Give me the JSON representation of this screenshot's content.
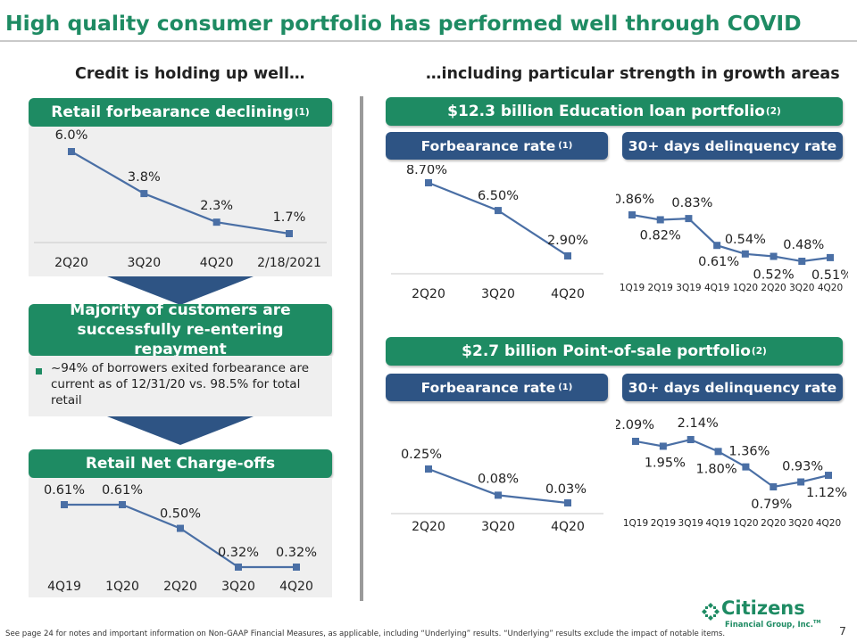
{
  "page": {
    "title": "High quality consumer portfolio has performed well through COVID",
    "left_subhead": "Credit is holding up well…",
    "right_subhead": "…including particular strength in growth areas",
    "page_number": "7",
    "footnote": "See page 24 for notes and important information on  Non-GAAP Financial Measures, as applicable, including “Underlying” results. “Underlying” results exclude the impact of notable items.",
    "brand_color": "#1e8b63",
    "secondary_color": "#2e5484",
    "series_color": "#4a6fa5"
  },
  "left": {
    "forbearance_header": "Retail forbearance declining",
    "forbearance_header_note": "(1)",
    "repayment_header": "Majority of customers are successfully re-entering repayment",
    "repayment_bullet": "~94% of borrowers exited forbearance are current as of 12/31/20 vs. 98.5% for total retail",
    "nco_header": "Retail Net Charge-offs"
  },
  "right": {
    "education_header": "$12.3 billion Education loan portfolio",
    "education_header_note": "(2)",
    "pos_header": "$2.7 billion Point-of-sale portfolio",
    "pos_header_note": "(2)",
    "forbearance_label": "Forbearance rate",
    "forbearance_label_note": "(1)",
    "delinquency_label": "30+ days delinquency rate"
  },
  "logo": {
    "name": "Citizens",
    "sub": "Financial Group, Inc.",
    "mark": "TM"
  },
  "chart_data": [
    {
      "id": "retail_forbearance",
      "type": "line",
      "categories": [
        "2Q20",
        "3Q20",
        "4Q20",
        "2/18/2021"
      ],
      "values": [
        6.0,
        3.8,
        2.3,
        1.7
      ],
      "labels": [
        "6.0%",
        "3.8%",
        "2.3%",
        "1.7%"
      ],
      "ylim": [
        0,
        7
      ]
    },
    {
      "id": "retail_nco",
      "type": "line",
      "categories": [
        "4Q19",
        "1Q20",
        "2Q20",
        "3Q20",
        "4Q20"
      ],
      "values": [
        0.61,
        0.61,
        0.5,
        0.32,
        0.32
      ],
      "labels": [
        "0.61%",
        "0.61%",
        "0.50%",
        "0.32%",
        "0.32%"
      ],
      "ylim": [
        0,
        1.5
      ]
    },
    {
      "id": "education_forbearance",
      "type": "line",
      "categories": [
        "2Q20",
        "3Q20",
        "4Q20"
      ],
      "values": [
        8.7,
        6.5,
        2.9
      ],
      "labels": [
        "8.70%",
        "6.50%",
        "2.90%"
      ],
      "ylim": [
        0,
        10
      ]
    },
    {
      "id": "education_delinquency",
      "type": "line",
      "categories": [
        "1Q19",
        "2Q19",
        "3Q19",
        "4Q19",
        "1Q20",
        "2Q20",
        "3Q20",
        "4Q20"
      ],
      "values": [
        0.86,
        0.82,
        0.83,
        0.61,
        0.54,
        0.52,
        0.48,
        0.51
      ],
      "labels": [
        "0.86%",
        "0.82%",
        "0.83%",
        "0.61%",
        "0.54%",
        "0.52%",
        "0.48%",
        "0.51%"
      ],
      "ylim": [
        0,
        2
      ]
    },
    {
      "id": "pos_forbearance",
      "type": "line",
      "categories": [
        "2Q20",
        "3Q20",
        "4Q20"
      ],
      "values": [
        0.25,
        0.08,
        0.03
      ],
      "labels": [
        "0.25%",
        "0.08%",
        "0.03%"
      ],
      "ylim": [
        0,
        1
      ]
    },
    {
      "id": "pos_delinquency",
      "type": "line",
      "categories": [
        "1Q19",
        "2Q19",
        "3Q19",
        "4Q19",
        "1Q20",
        "2Q20",
        "3Q20",
        "4Q20"
      ],
      "values": [
        2.09,
        1.95,
        2.14,
        1.8,
        1.36,
        0.79,
        0.93,
        1.12
      ],
      "labels": [
        "2.09%",
        "1.95%",
        "2.14%",
        "1.80%",
        "1.36%",
        "0.79%",
        "0.93%",
        "1.12%"
      ],
      "ylim": [
        0,
        3
      ]
    }
  ]
}
